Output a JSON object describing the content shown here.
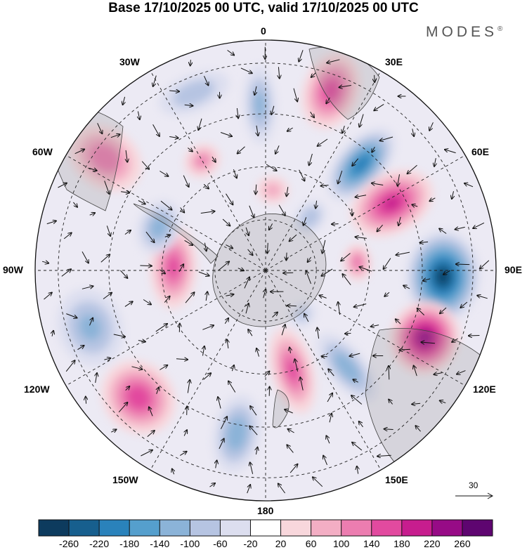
{
  "title": "Base 17/10/2025 00 UTC, valid 17/10/2025 00 UTC",
  "brand": {
    "name": "MODES",
    "mark": "®"
  },
  "longitude_labels": {
    "lon_0": "0",
    "lon_30e": "30E",
    "lon_60e": "60E",
    "lon_90e": "90E",
    "lon_120e": "120E",
    "lon_150e": "150E",
    "lon_180": "180",
    "lon_150w": "150W",
    "lon_120w": "120W",
    "lon_90w": "90W",
    "lon_60w": "60W",
    "lon_30w": "30W"
  },
  "vector_scale": {
    "label": "30"
  },
  "colorbar": {
    "colors": [
      "#0d3b5e",
      "#175f8e",
      "#2a82bb",
      "#559fcd",
      "#8bb3d8",
      "#b6c4e2",
      "#dcdeef",
      "#ffffff",
      "#f8d7dc",
      "#f3aec4",
      "#ec7db0",
      "#e24a9f",
      "#c71d8e",
      "#970b86",
      "#5e0570"
    ],
    "ticks": [
      "-260",
      "-220",
      "-180",
      "-140",
      "-100",
      "-60",
      "-20",
      "20",
      "60",
      "100",
      "140",
      "180",
      "220",
      "260"
    ]
  },
  "anomalies": [
    {
      "lon": 20,
      "r": 0.83,
      "v": 150,
      "rx": 0.12,
      "ry": 0.17
    },
    {
      "lon": 42,
      "r": 0.62,
      "v": -200,
      "rx": 0.1,
      "ry": 0.19
    },
    {
      "lon": 62,
      "r": 0.62,
      "v": 180,
      "rx": 0.13,
      "ry": 0.19
    },
    {
      "lon": 85,
      "r": 0.4,
      "v": 120,
      "rx": 0.08,
      "ry": 0.06
    },
    {
      "lon": 92,
      "r": 0.77,
      "v": -260,
      "rx": 0.2,
      "ry": 0.16
    },
    {
      "lon": 113,
      "r": 0.75,
      "v": 240,
      "rx": 0.16,
      "ry": 0.15
    },
    {
      "lon": 140,
      "r": 0.55,
      "v": -120,
      "rx": 0.08,
      "ry": 0.18
    },
    {
      "lon": 165,
      "r": 0.45,
      "v": 140,
      "rx": 0.09,
      "ry": 0.19
    },
    {
      "lon": -170,
      "r": 0.72,
      "v": -120,
      "rx": 0.1,
      "ry": 0.17
    },
    {
      "lon": -135,
      "r": 0.78,
      "v": 160,
      "rx": 0.17,
      "ry": 0.15
    },
    {
      "lon": -108,
      "r": 0.8,
      "v": -100,
      "rx": 0.17,
      "ry": 0.14
    },
    {
      "lon": -88,
      "r": 0.4,
      "v": 140,
      "rx": 0.18,
      "ry": 0.1
    },
    {
      "lon": -55,
      "r": 0.85,
      "v": 120,
      "rx": 0.13,
      "ry": 0.17
    },
    {
      "lon": -68,
      "r": 0.5,
      "v": -110,
      "rx": 0.12,
      "ry": 0.09
    },
    {
      "lon": -30,
      "r": 0.55,
      "v": 100,
      "rx": 0.08,
      "ry": 0.07
    },
    {
      "lon": -22,
      "r": 0.83,
      "v": -80,
      "rx": 0.16,
      "ry": 0.08
    },
    {
      "lon": -2,
      "r": 0.72,
      "v": -100,
      "rx": 0.07,
      "ry": 0.17
    },
    {
      "lon": 5,
      "r": 0.35,
      "v": 70,
      "rx": 0.07,
      "ry": 0.06
    },
    {
      "lon": 40,
      "r": 0.3,
      "v": -90,
      "rx": 0.06,
      "ry": 0.08
    },
    {
      "lon": 140,
      "r": 0.25,
      "v": -60,
      "rx": 0.06,
      "ry": 0.05
    }
  ]
}
